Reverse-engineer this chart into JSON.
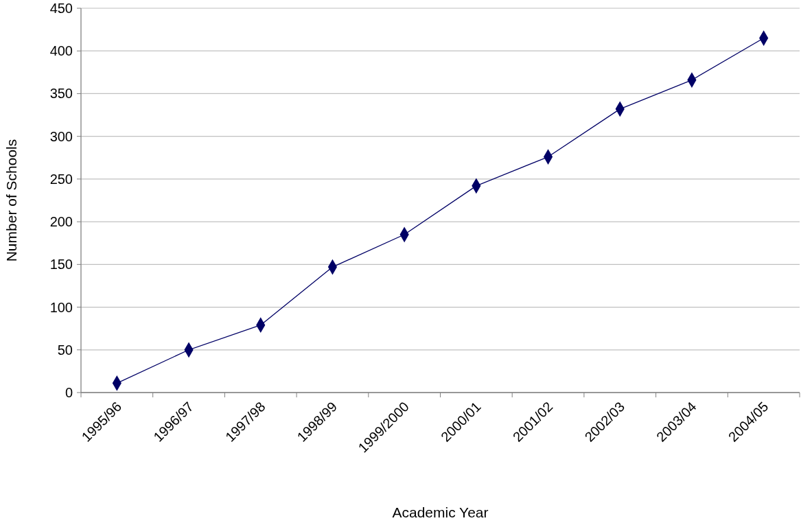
{
  "chart_data": {
    "type": "line",
    "xlabel": "Academic Year",
    "ylabel": "Number of Schools",
    "categories": [
      "1995/96",
      "1996/97",
      "1997/98",
      "1998/99",
      "1999/2000",
      "2000/01",
      "2001/02",
      "2002/03",
      "2003/04",
      "2004/05"
    ],
    "series": [
      {
        "color": "#000066",
        "values": [
          11,
          50,
          79,
          147,
          185,
          242,
          276,
          332,
          366,
          415
        ]
      }
    ],
    "ylim": [
      0,
      450
    ],
    "yticks": [
      0,
      50,
      100,
      150,
      200,
      250,
      300,
      350,
      400,
      450
    ],
    "grid": "y",
    "marker": "diamond",
    "line_style": "solid"
  }
}
